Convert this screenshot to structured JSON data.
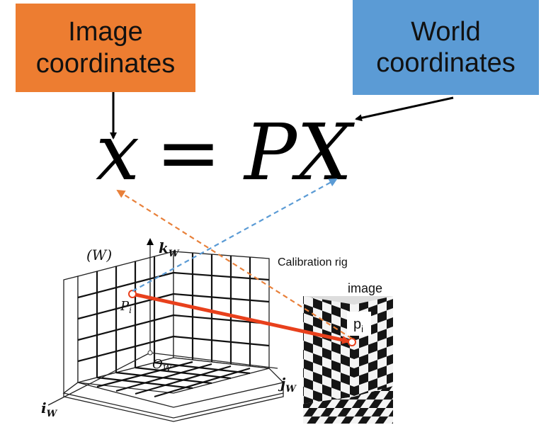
{
  "colors": {
    "image_box": "#ED7D31",
    "world_box": "#5B9BD5",
    "orange_dashed": "#E8803A",
    "blue_dashed": "#5B9BD5",
    "projection_ray": "#E8401C"
  },
  "boxes": {
    "image_coordinates": {
      "line1": "Image",
      "line2": "coordinates"
    },
    "world_coordinates": {
      "line1": "World",
      "line2": "coordinates"
    }
  },
  "equation": {
    "lhs": "x",
    "op": "=",
    "rhs": "PX"
  },
  "rig": {
    "frame_label": "(W)",
    "axis_k": "k",
    "axis_k_sub": "W",
    "axis_i": "i",
    "axis_i_sub": "W",
    "axis_j": "j",
    "axis_j_sub": "W",
    "point": "P",
    "point_sub": "i",
    "origin": "O",
    "origin_sub": "W",
    "caption": "Calibration rig"
  },
  "image_panel": {
    "title": "image",
    "point": "p",
    "point_sub": "i"
  }
}
